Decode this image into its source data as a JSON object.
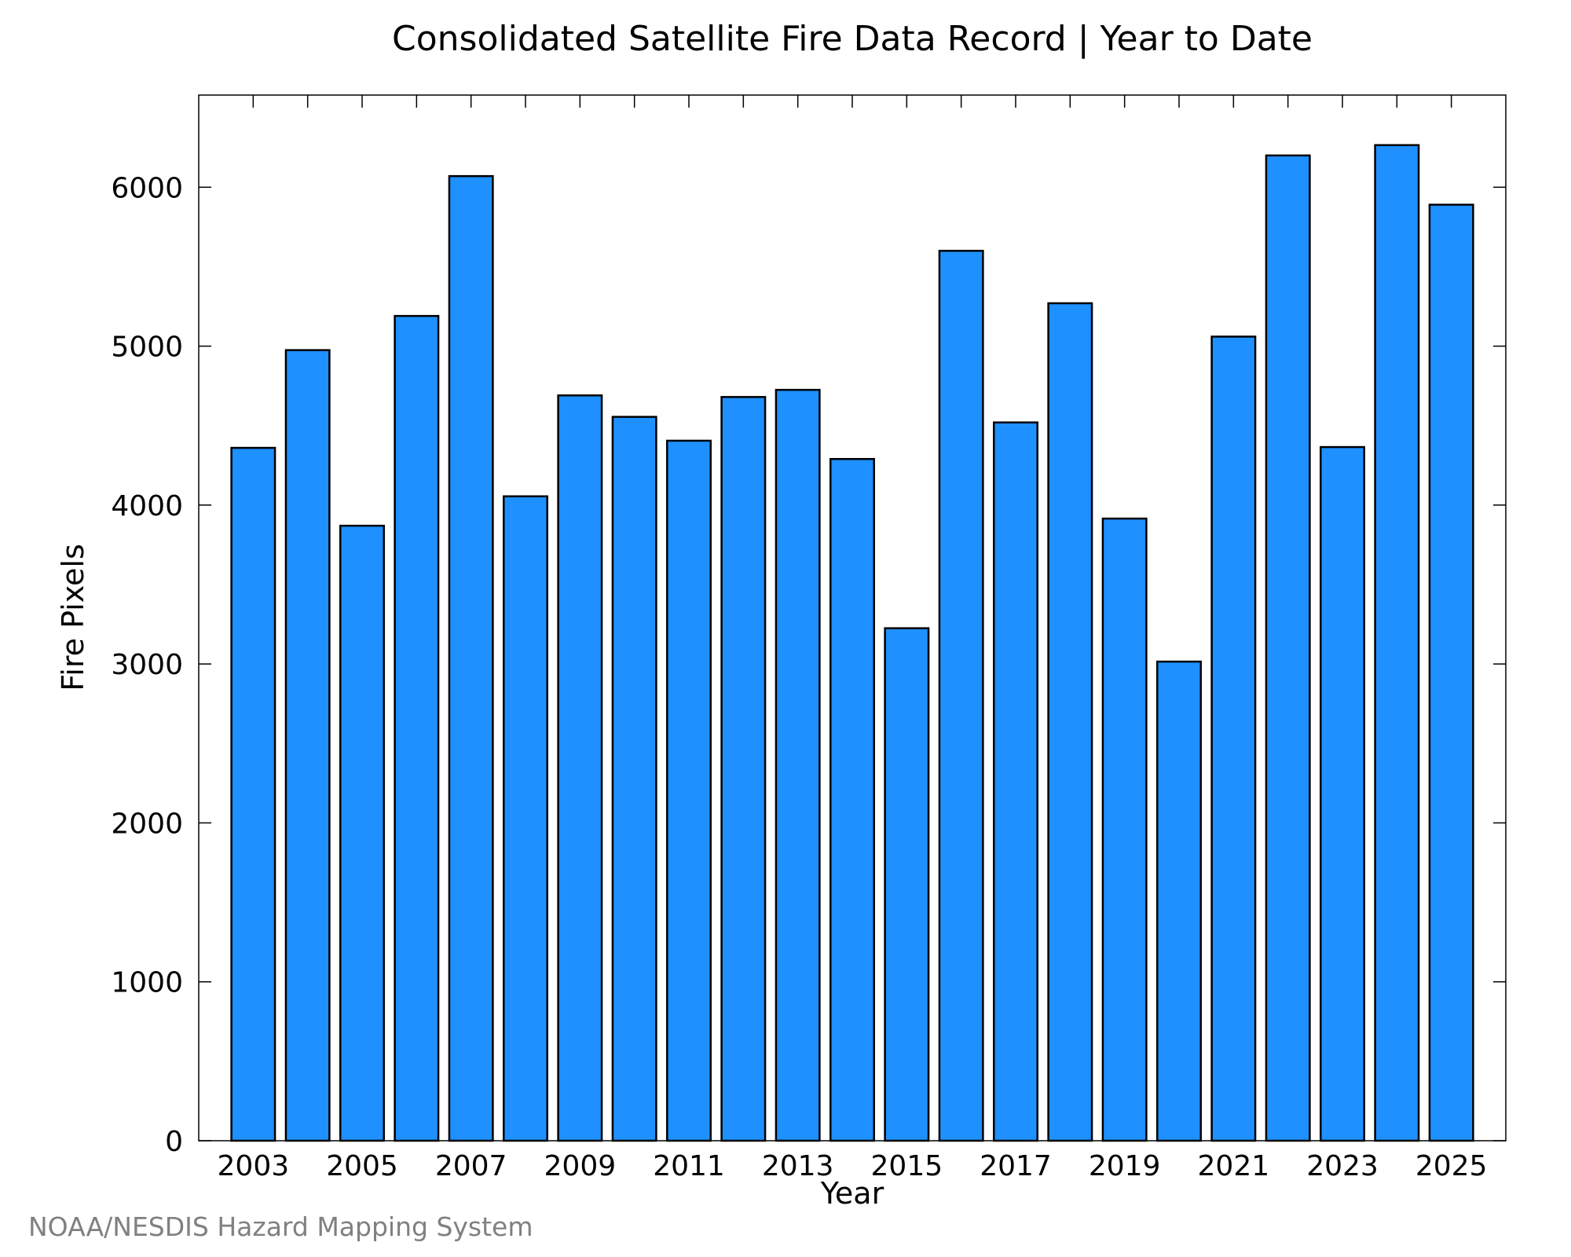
{
  "chart_data": {
    "type": "bar",
    "title": "Consolidated Satellite Fire Data Record | Year to Date",
    "xlabel": "Year",
    "ylabel": "Fire Pixels",
    "categories": [
      "2003",
      "2004",
      "2005",
      "2006",
      "2007",
      "2008",
      "2009",
      "2010",
      "2011",
      "2012",
      "2013",
      "2014",
      "2015",
      "2016",
      "2017",
      "2018",
      "2019",
      "2020",
      "2021",
      "2022",
      "2023",
      "2024",
      "2025"
    ],
    "x_tick_labels": [
      "2003",
      "2005",
      "2007",
      "2009",
      "2011",
      "2013",
      "2015",
      "2017",
      "2019",
      "2021",
      "2023",
      "2025"
    ],
    "values": [
      4360,
      4975,
      3870,
      5190,
      6070,
      4055,
      4690,
      4555,
      4405,
      4680,
      4725,
      4290,
      3225,
      5600,
      4520,
      5270,
      3915,
      3015,
      5060,
      6200,
      4365,
      6265,
      5890
    ],
    "ylim": [
      0,
      6580
    ],
    "y_ticks": [
      0,
      1000,
      2000,
      3000,
      4000,
      5000,
      6000
    ],
    "grid": false,
    "bar_color": "#1e90ff",
    "edge_color": "#000000"
  },
  "footer": {
    "credit": "NOAA/NESDIS Hazard Mapping System"
  }
}
